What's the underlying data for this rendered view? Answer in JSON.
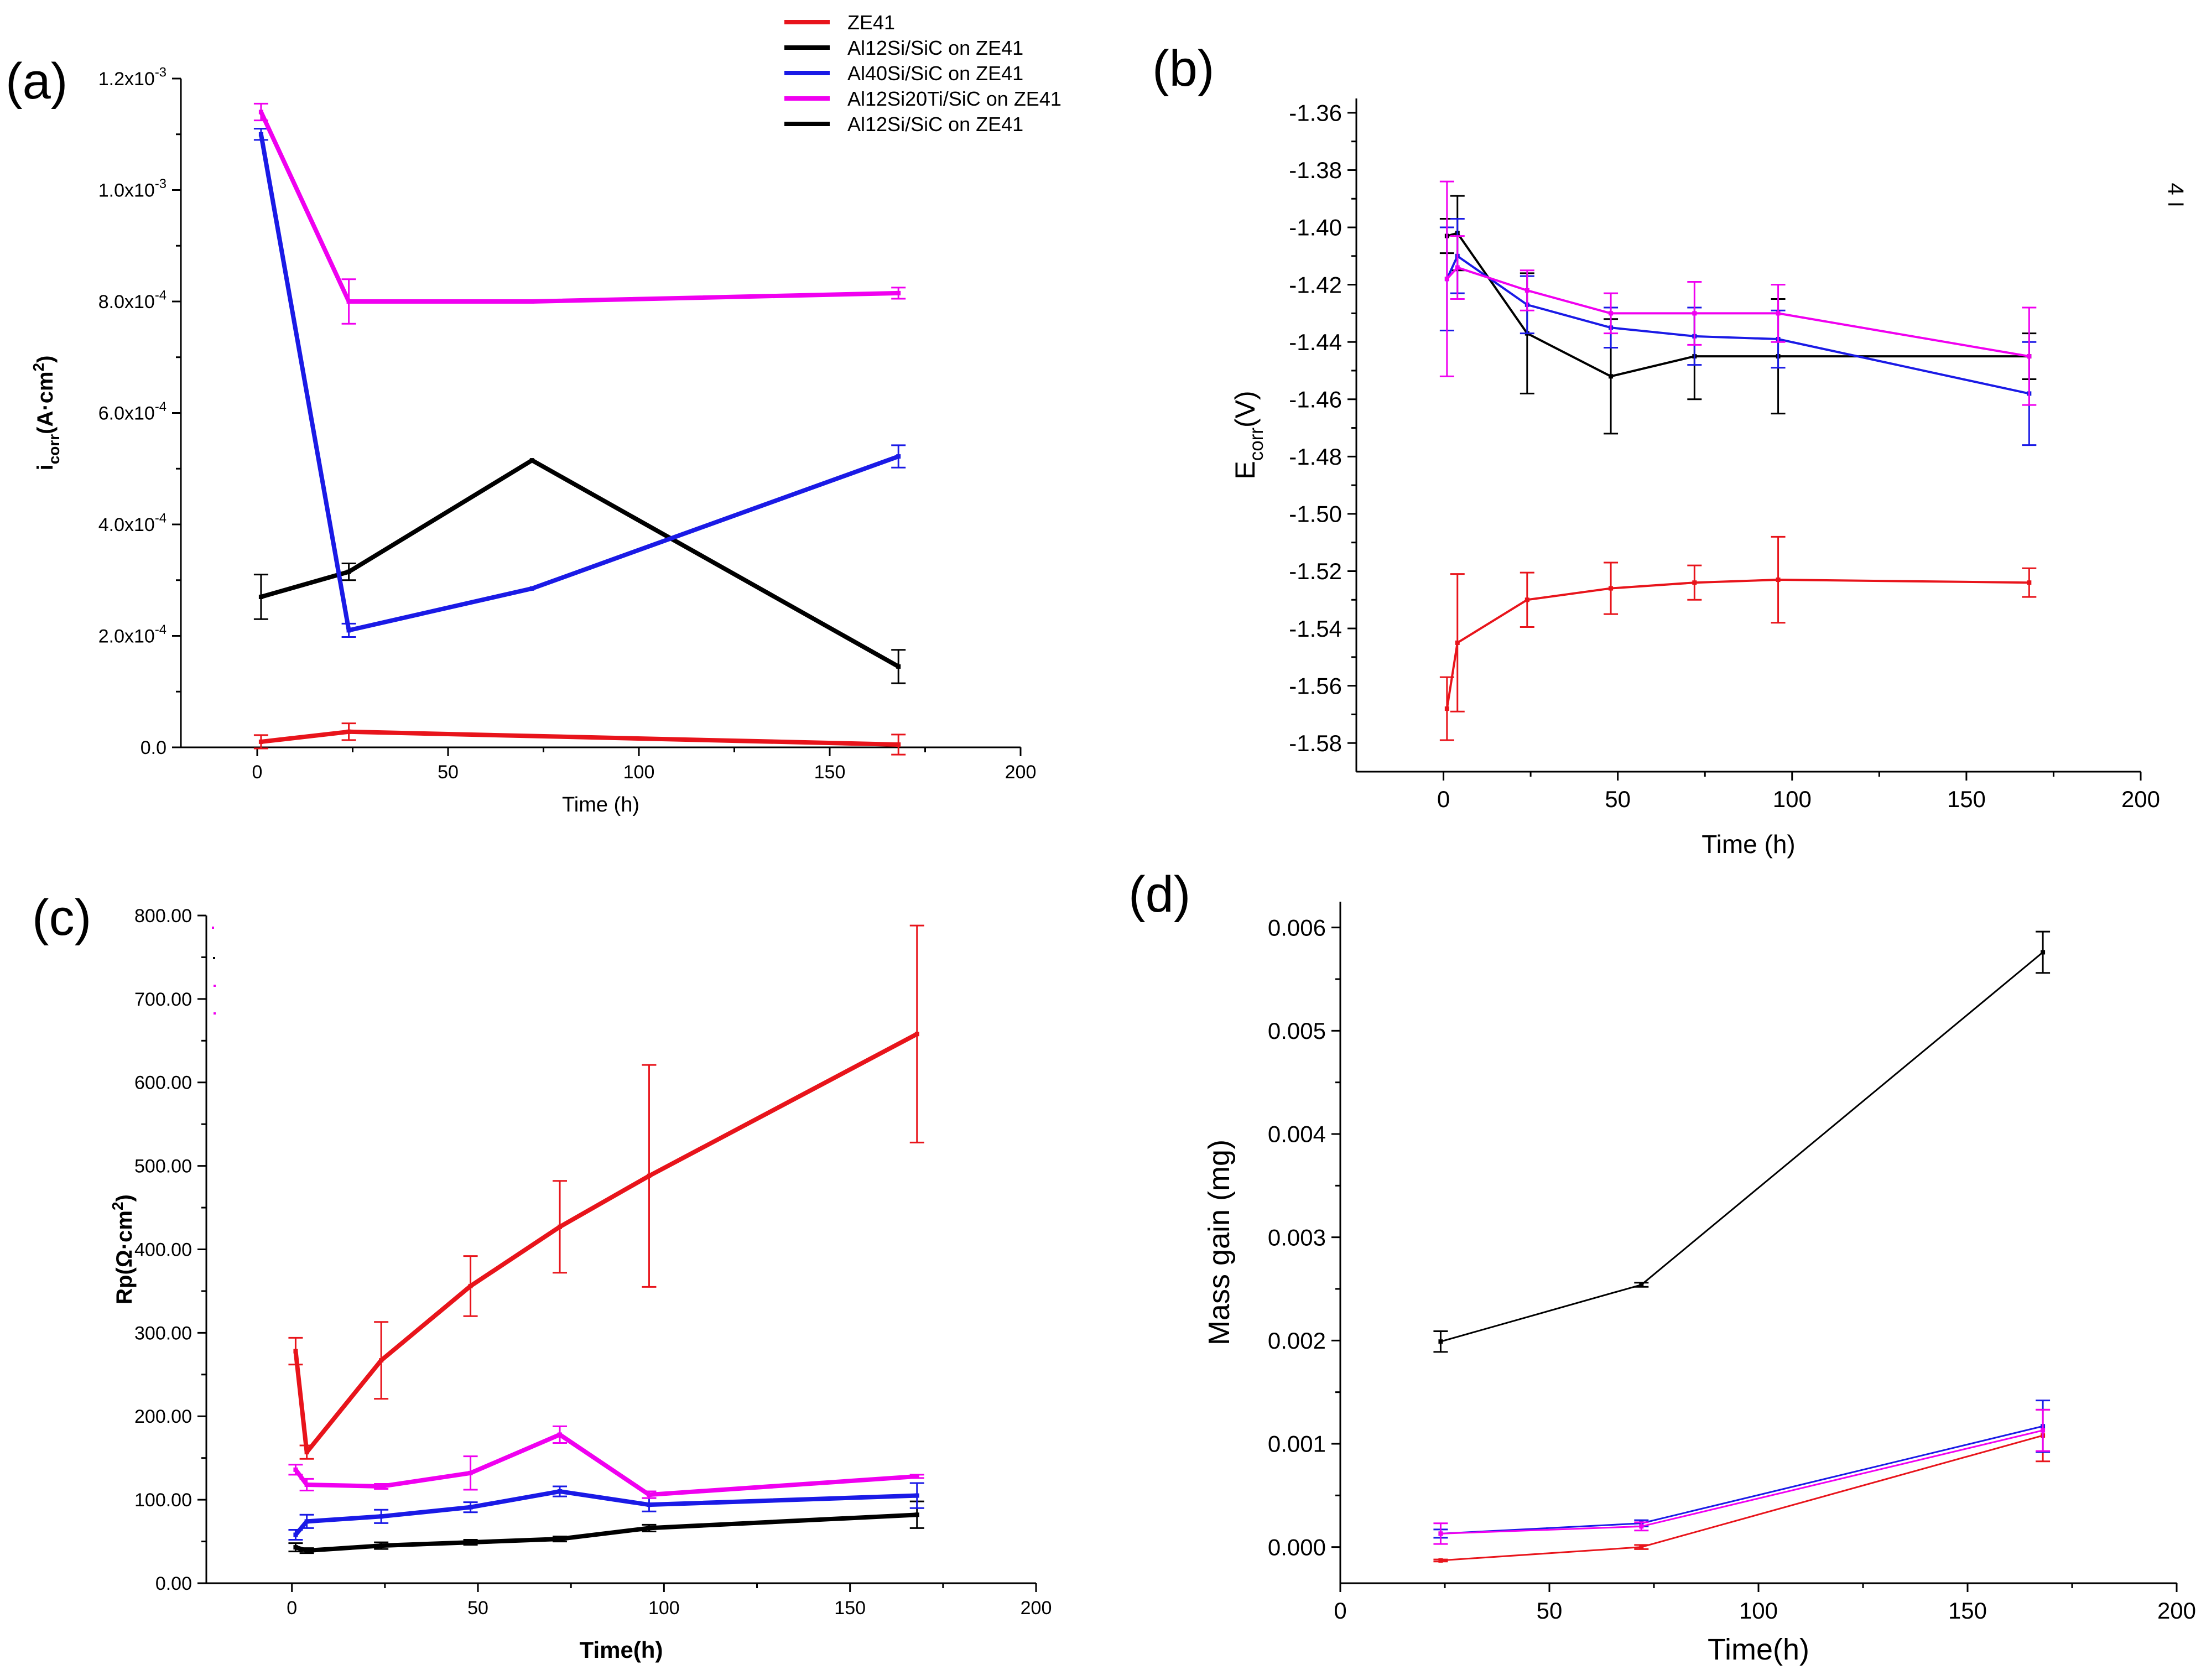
{
  "colors": {
    "ZE41": "#e8141b",
    "Al12Si/SiC on ZE41": "#000000",
    "Al40Si/SiC on ZE41": "#1a1ae6",
    "Al12Si20Ti/SiC on ZE41": "#f000f0"
  },
  "legend": {
    "entries": [
      {
        "label": "ZE41",
        "color": "#e8141b"
      },
      {
        "label": "Al12Si/SiC on ZE41",
        "color": "#000000"
      },
      {
        "label": "Al40Si/SiC on ZE41",
        "color": "#1a1ae6"
      },
      {
        "label": "Al12Si20Ti/SiC on ZE41",
        "color": "#f000f0"
      },
      {
        "label": "Al12Si/SiC on ZE41",
        "color": "#000000"
      }
    ]
  },
  "stray_text_b": "4 I",
  "chart_data": [
    {
      "id": "a",
      "panel_label": "(a)",
      "type": "line",
      "xlabel": "Time (h)",
      "ylabel_main": "i",
      "ylabel_sub": "corr",
      "ylabel_tail": "(A·cm",
      "ylabel_sup": "2",
      "ylabel_close": ")",
      "xlim": [
        -20,
        200
      ],
      "ylim": [
        0,
        0.0012
      ],
      "xticks": [
        0,
        50,
        100,
        150,
        200
      ],
      "yticks": [
        {
          "v": 0,
          "m": "0.0",
          "e": ""
        },
        {
          "v": 0.0002,
          "m": "2.0x10",
          "e": "-4"
        },
        {
          "v": 0.0004,
          "m": "4.0x10",
          "e": "-4"
        },
        {
          "v": 0.0006,
          "m": "6.0x10",
          "e": "-4"
        },
        {
          "v": 0.0008,
          "m": "8.0x10",
          "e": "-4"
        },
        {
          "v": 0.001,
          "m": "1.0x10",
          "e": "-3"
        },
        {
          "v": 0.0012,
          "m": "1.2x10",
          "e": "-3"
        }
      ],
      "series": [
        {
          "name": "ZE41",
          "color": "#e8141b",
          "x": [
            1,
            24,
            168
          ],
          "y": [
            1e-05,
            2.8e-05,
            5e-06
          ],
          "err": [
            1.2e-05,
            1.5e-05,
            1.8e-05
          ]
        },
        {
          "name": "Al12Si/SiC on ZE41",
          "color": "#000000",
          "x": [
            1,
            24,
            72,
            168
          ],
          "y": [
            0.00027,
            0.000315,
            0.000515,
            0.000145
          ],
          "err": [
            4e-05,
            1.5e-05,
            0,
            3e-05
          ]
        },
        {
          "name": "Al40Si/SiC on ZE41",
          "color": "#1a1ae6",
          "x": [
            1,
            24,
            72,
            168
          ],
          "y": [
            0.0011,
            0.00021,
            0.000285,
            0.000522
          ],
          "err": [
            1e-05,
            1.2e-05,
            0,
            2e-05
          ]
        },
        {
          "name": "Al12Si20Ti/SiC on ZE41",
          "color": "#f000f0",
          "x": [
            1,
            24,
            72,
            168
          ],
          "y": [
            0.00114,
            0.0008,
            0.0008,
            0.000815
          ],
          "err": [
            1.5e-05,
            4e-05,
            0,
            1e-05
          ]
        }
      ]
    },
    {
      "id": "b",
      "panel_label": "(b)",
      "type": "line",
      "xlabel": "Time (h)",
      "ylabel_main": "E",
      "ylabel_sub": "corr",
      "ylabel_tail": "(V)",
      "xlim": [
        -25,
        200
      ],
      "ylim": [
        -1.59,
        -1.355
      ],
      "xticks": [
        0,
        50,
        100,
        150,
        200
      ],
      "yticks": [
        -1.36,
        -1.38,
        -1.4,
        -1.42,
        -1.44,
        -1.46,
        -1.48,
        -1.5,
        -1.52,
        -1.54,
        -1.56,
        -1.58
      ],
      "series": [
        {
          "name": "ZE41",
          "color": "#e8141b",
          "x": [
            1,
            4,
            24,
            48,
            72,
            96,
            168
          ],
          "y": [
            -1.568,
            -1.545,
            -1.53,
            -1.526,
            -1.524,
            -1.523,
            -1.524
          ],
          "err": [
            0.011,
            0.024,
            0.0095,
            0.009,
            0.006,
            0.015,
            0.005
          ]
        },
        {
          "name": "Al12Si/SiC on ZE41",
          "color": "#000000",
          "x": [
            1,
            4,
            24,
            48,
            72,
            96,
            168
          ],
          "y": [
            -1.403,
            -1.402,
            -1.437,
            -1.452,
            -1.445,
            -1.445,
            -1.445
          ],
          "err": [
            0.006,
            0.013,
            0.021,
            0.02,
            0.015,
            0.02,
            0.008
          ]
        },
        {
          "name": "Al40Si/SiC on ZE41",
          "color": "#1a1ae6",
          "x": [
            1,
            4,
            24,
            48,
            72,
            96,
            168
          ],
          "y": [
            -1.418,
            -1.41,
            -1.427,
            -1.435,
            -1.438,
            -1.439,
            -1.458
          ],
          "err": [
            0.018,
            0.013,
            0.01,
            0.007,
            0.01,
            0.01,
            0.018
          ]
        },
        {
          "name": "Al12Si20Ti/SiC on ZE41",
          "color": "#f000f0",
          "x": [
            1,
            4,
            24,
            48,
            72,
            96,
            168
          ],
          "y": [
            -1.418,
            -1.414,
            -1.422,
            -1.43,
            -1.43,
            -1.43,
            -1.445
          ],
          "err": [
            0.034,
            0.011,
            0.007,
            0.007,
            0.011,
            0.01,
            0.017
          ]
        }
      ]
    },
    {
      "id": "c",
      "panel_label": "(c)",
      "type": "line",
      "xlabel": "Time(h)",
      "ylabel_main": "Rp(Ω·cm",
      "ylabel_sup": "2",
      "ylabel_close": ")",
      "xlim": [
        -23,
        200
      ],
      "ylim": [
        0,
        800
      ],
      "xticks": [
        0,
        50,
        100,
        150,
        200
      ],
      "yticks": [
        0,
        100,
        200,
        300,
        400,
        500,
        600,
        700,
        800
      ],
      "series": [
        {
          "name": "ZE41",
          "color": "#e8141b",
          "x": [
            1,
            4,
            24,
            48,
            72,
            96,
            168
          ],
          "y": [
            278,
            157,
            267,
            356,
            427,
            488,
            658
          ],
          "err": [
            16,
            8,
            46,
            36,
            55,
            133,
            130
          ]
        },
        {
          "name": "Al12Si/SiC on ZE41",
          "color": "#000000",
          "x": [
            1,
            4,
            24,
            48,
            72,
            96,
            168
          ],
          "y": [
            43,
            39,
            45,
            49,
            53,
            66,
            82
          ],
          "err": [
            5,
            3,
            4,
            3,
            3,
            4,
            16
          ]
        },
        {
          "name": "Al40Si/SiC on ZE41",
          "color": "#1a1ae6",
          "x": [
            1,
            4,
            24,
            48,
            72,
            96,
            168
          ],
          "y": [
            58,
            74,
            80,
            91,
            110,
            94,
            105
          ],
          "err": [
            6,
            8,
            8,
            6,
            6,
            8,
            15
          ]
        },
        {
          "name": "Al12Si20Ti/SiC on ZE41",
          "color": "#f000f0",
          "x": [
            1,
            4,
            24,
            48,
            72,
            96,
            168
          ],
          "y": [
            136,
            118,
            116,
            132,
            178,
            106,
            128
          ],
          "err": [
            6,
            7,
            3,
            20,
            10,
            4,
            2
          ]
        }
      ]
    },
    {
      "id": "d",
      "panel_label": "(d)",
      "type": "line",
      "xlabel": "Time(h)",
      "ylabel_main": "Mass gain (mg)",
      "xlim": [
        0,
        200
      ],
      "ylim": [
        -0.00035,
        0.00625
      ],
      "xticks": [
        0,
        50,
        100,
        150,
        200
      ],
      "yticks": [
        {
          "v": 0,
          "t": "0.000"
        },
        {
          "v": 0.001,
          "t": "0.001"
        },
        {
          "v": 0.002,
          "t": "0.002"
        },
        {
          "v": 0.003,
          "t": "0.003"
        },
        {
          "v": 0.004,
          "t": "0.004"
        },
        {
          "v": 0.005,
          "t": "0.005"
        },
        {
          "v": 0.006,
          "t": "0.006"
        }
      ],
      "series": [
        {
          "name": "ZE41",
          "color": "#e8141b",
          "x": [
            24,
            72,
            168
          ],
          "y": [
            -0.00013,
            0.0,
            0.00108
          ],
          "err": [
            1e-05,
            2e-05,
            0.00025
          ]
        },
        {
          "name": "Al12Si/SiC on ZE41",
          "color": "#000000",
          "x": [
            24,
            72,
            168
          ],
          "y": [
            0.00199,
            0.00254,
            0.00576
          ],
          "err": [
            0.0001,
            2e-05,
            0.0002
          ]
        },
        {
          "name": "Al40Si/SiC on ZE41",
          "color": "#1a1ae6",
          "x": [
            24,
            72,
            168
          ],
          "y": [
            0.00013,
            0.00023,
            0.00117
          ],
          "err": [
            4e-05,
            3e-05,
            0.00025
          ]
        },
        {
          "name": "Al12Si20Ti/SiC on ZE41",
          "color": "#f000f0",
          "x": [
            24,
            72,
            168
          ],
          "y": [
            0.00013,
            0.0002,
            0.00113
          ],
          "err": [
            0.0001,
            4e-05,
            0.0002
          ]
        }
      ]
    }
  ]
}
